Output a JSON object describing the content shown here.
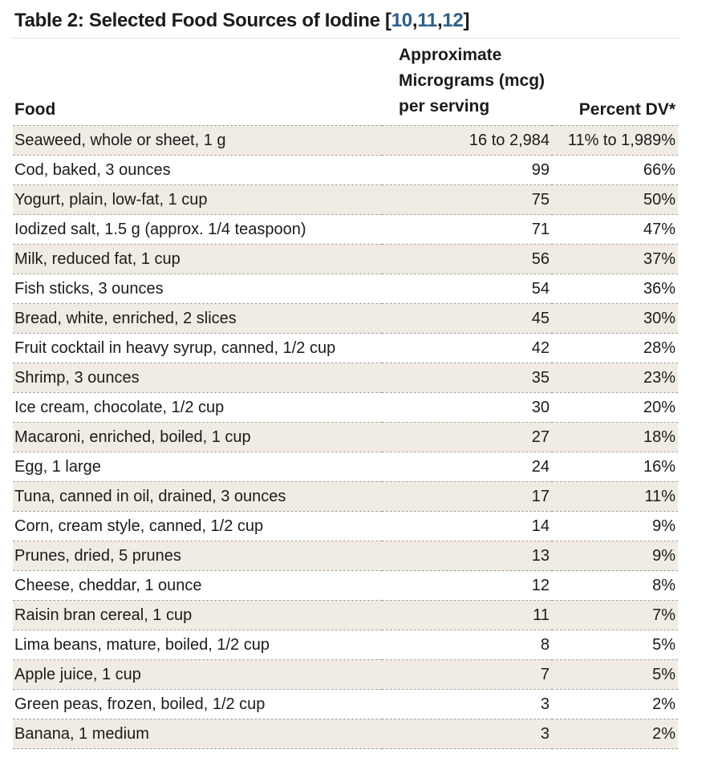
{
  "title": {
    "text": "Table 2: Selected Food Sources of Iodine",
    "bracket_open": "[",
    "citations": [
      "10",
      "11",
      "12"
    ],
    "citation_separator": ",",
    "bracket_close": "]"
  },
  "header": {
    "food": "Food",
    "mcg_lines": [
      "Approximate",
      "Micrograms (mcg)",
      "per serving"
    ],
    "dv": "Percent DV*"
  },
  "rows": [
    {
      "food": "Seaweed, whole or sheet, 1 g",
      "mcg": "16 to 2,984",
      "dv": "11% to 1,989%"
    },
    {
      "food": "Cod, baked, 3 ounces",
      "mcg": "99",
      "dv": "66%"
    },
    {
      "food": "Yogurt, plain, low-fat, 1 cup",
      "mcg": "75",
      "dv": "50%"
    },
    {
      "food": "Iodized salt, 1.5 g (approx. 1/4 teaspoon)",
      "mcg": "71",
      "dv": "47%"
    },
    {
      "food": "Milk, reduced fat, 1 cup",
      "mcg": "56",
      "dv": "37%"
    },
    {
      "food": "Fish sticks, 3 ounces",
      "mcg": "54",
      "dv": "36%"
    },
    {
      "food": "Bread, white, enriched, 2 slices",
      "mcg": "45",
      "dv": "30%"
    },
    {
      "food": "Fruit cocktail in heavy syrup, canned, 1/2 cup",
      "mcg": "42",
      "dv": "28%"
    },
    {
      "food": "Shrimp, 3 ounces",
      "mcg": "35",
      "dv": "23%"
    },
    {
      "food": "Ice cream, chocolate, 1/2 cup",
      "mcg": "30",
      "dv": "20%"
    },
    {
      "food": "Macaroni, enriched, boiled, 1 cup",
      "mcg": "27",
      "dv": "18%"
    },
    {
      "food": "Egg, 1 large",
      "mcg": "24",
      "dv": "16%"
    },
    {
      "food": "Tuna, canned in oil, drained, 3 ounces",
      "mcg": "17",
      "dv": "11%"
    },
    {
      "food": "Corn, cream style, canned, 1/2 cup",
      "mcg": "14",
      "dv": "9%"
    },
    {
      "food": "Prunes, dried, 5 prunes",
      "mcg": "13",
      "dv": "9%"
    },
    {
      "food": "Cheese, cheddar, 1 ounce",
      "mcg": "12",
      "dv": "8%"
    },
    {
      "food": "Raisin bran cereal, 1 cup",
      "mcg": "11",
      "dv": "7%"
    },
    {
      "food": "Lima beans, mature, boiled, 1/2 cup",
      "mcg": "8",
      "dv": "5%"
    },
    {
      "food": "Apple juice, 1 cup",
      "mcg": "7",
      "dv": "5%"
    },
    {
      "food": "Green peas, frozen, boiled, 1/2 cup",
      "mcg": "3",
      "dv": "2%"
    },
    {
      "food": "Banana, 1 medium",
      "mcg": "3",
      "dv": "2%"
    }
  ],
  "colors": {
    "text": "#1b1b1b",
    "link": "#2d608c",
    "row_alt": "#f1ece3",
    "dash": "#a5a19b",
    "title_rule": "#e0e0e0",
    "background": "#ffffff"
  }
}
